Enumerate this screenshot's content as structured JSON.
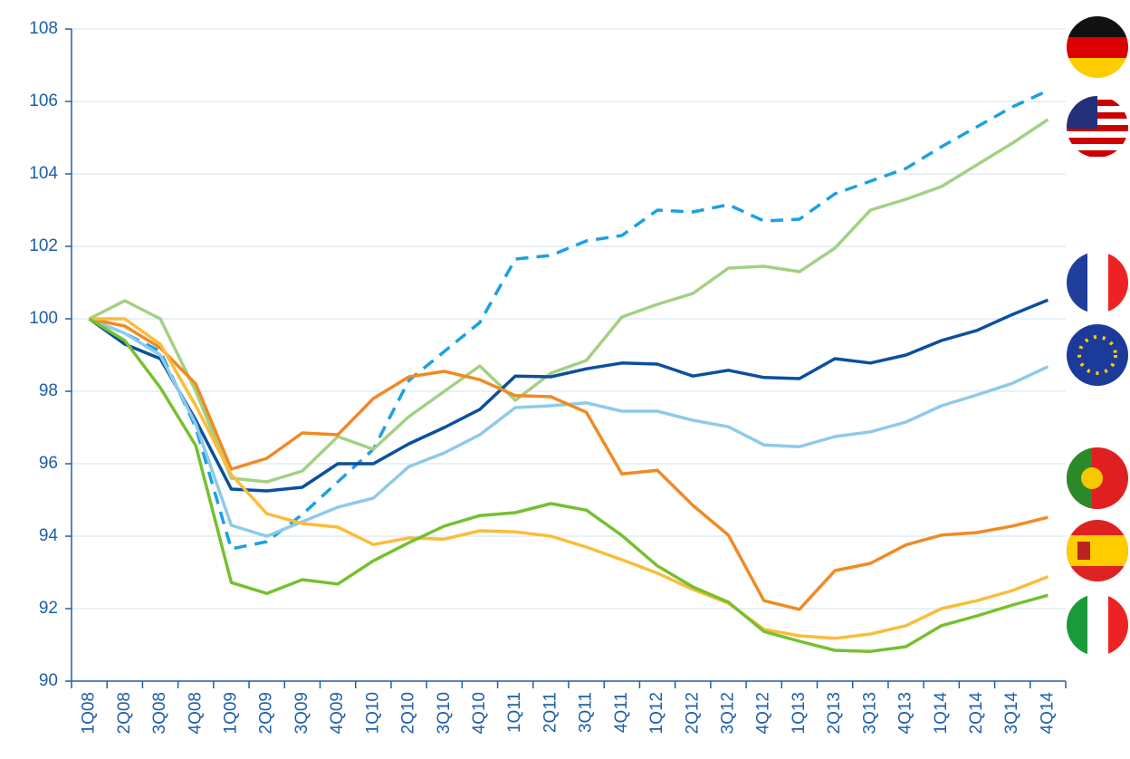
{
  "chart_data": {
    "type": "line",
    "categories": [
      "1Q08",
      "2Q08",
      "3Q08",
      "4Q08",
      "1Q09",
      "2Q09",
      "3Q09",
      "4Q09",
      "1Q10",
      "2Q10",
      "3Q10",
      "4Q10",
      "1Q11",
      "2Q11",
      "3Q11",
      "4Q11",
      "1Q12",
      "2Q12",
      "3Q12",
      "4Q12",
      "1Q13",
      "2Q13",
      "3Q13",
      "4Q13",
      "1Q14",
      "2Q14",
      "3Q14",
      "4Q14"
    ],
    "ylim": [
      90,
      108
    ],
    "yticks": [
      90,
      92,
      94,
      96,
      98,
      100,
      102,
      104,
      106,
      108
    ],
    "grid": true,
    "series": [
      {
        "color": "#1ba1e2",
        "dashed": true,
        "values": [
          100,
          99.6,
          99.1,
          97.0,
          93.65,
          93.85,
          94.6,
          95.5,
          96.4,
          98.3,
          99.1,
          99.9,
          101.65,
          101.75,
          102.15,
          102.3,
          103.0,
          102.95,
          103.15,
          102.7,
          102.75,
          103.45,
          103.8,
          104.15,
          104.75,
          105.3,
          105.85,
          106.3
        ]
      },
      {
        "color": "#a3d083",
        "values": [
          100,
          100.5,
          100.0,
          98.0,
          95.6,
          95.5,
          95.8,
          96.75,
          96.4,
          97.3,
          98.0,
          98.7,
          97.75,
          98.5,
          98.85,
          100.05,
          100.4,
          100.7,
          101.4,
          101.45,
          101.3,
          101.95,
          103.0,
          103.3,
          103.65,
          104.25,
          104.85,
          105.5
        ]
      },
      {
        "color": "#0b4f9e",
        "values": [
          100,
          99.3,
          98.9,
          97.2,
          95.3,
          95.25,
          95.35,
          96.0,
          96.0,
          96.55,
          97.0,
          97.5,
          98.42,
          98.4,
          98.62,
          98.78,
          98.75,
          98.42,
          98.58,
          98.38,
          98.35,
          98.9,
          98.78,
          99.0,
          99.4,
          99.68,
          100.12,
          100.52
        ]
      },
      {
        "color": "#8ecae9",
        "values": [
          100,
          99.6,
          99.0,
          97.1,
          94.3,
          94.0,
          94.4,
          94.8,
          95.05,
          95.92,
          96.3,
          96.8,
          97.55,
          97.6,
          97.68,
          97.45,
          97.45,
          97.2,
          97.02,
          96.52,
          96.47,
          96.75,
          96.88,
          97.15,
          97.6,
          97.9,
          98.22,
          98.68
        ]
      },
      {
        "color": "#f08a24",
        "values": [
          100,
          99.8,
          99.2,
          98.2,
          95.85,
          96.15,
          96.85,
          96.8,
          97.8,
          98.4,
          98.55,
          98.32,
          97.88,
          97.85,
          97.42,
          95.72,
          95.82,
          94.85,
          94.03,
          92.22,
          91.98,
          93.05,
          93.25,
          93.76,
          94.03,
          94.1,
          94.28,
          94.52
        ]
      },
      {
        "color": "#fbbc3a",
        "values": [
          100,
          100.0,
          99.3,
          97.6,
          95.7,
          94.62,
          94.35,
          94.25,
          93.77,
          93.95,
          93.92,
          94.15,
          94.12,
          94.0,
          93.7,
          93.35,
          92.98,
          92.53,
          92.15,
          91.43,
          91.25,
          91.18,
          91.3,
          91.53,
          92.0,
          92.22,
          92.5,
          92.88
        ]
      },
      {
        "color": "#76c02f",
        "values": [
          100,
          99.4,
          98.1,
          96.5,
          92.72,
          92.42,
          92.8,
          92.68,
          93.32,
          93.82,
          94.28,
          94.57,
          94.65,
          94.9,
          94.72,
          94.02,
          93.18,
          92.6,
          92.18,
          91.37,
          91.1,
          90.85,
          90.82,
          90.95,
          91.53,
          91.8,
          92.1,
          92.37
        ]
      }
    ]
  }
}
